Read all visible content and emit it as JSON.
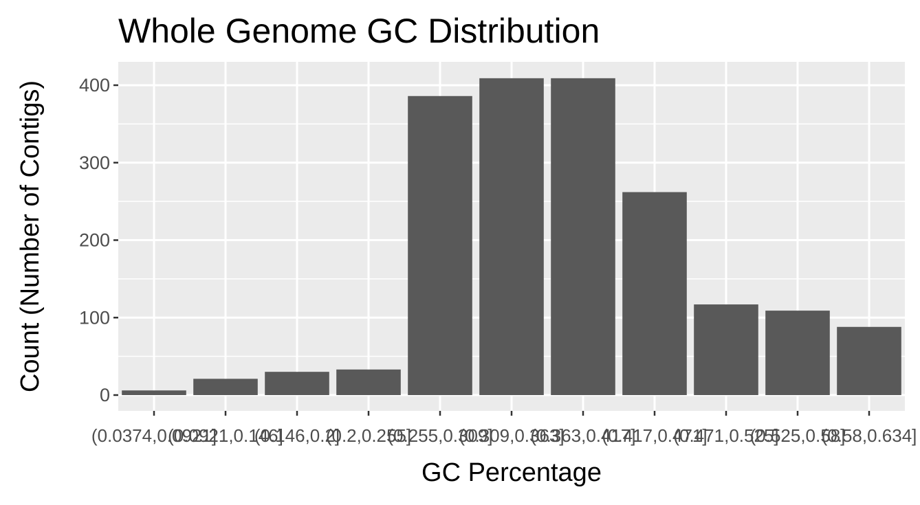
{
  "chart_data": {
    "type": "bar",
    "title": "Whole Genome GC Distribution",
    "xlabel": "GC Percentage",
    "ylabel": "Count (Number of Contigs)",
    "categories": [
      "(0.0374,0.0921]",
      "(0.0921,0.146]",
      "(0.146,0.2]",
      "(0.2,0.255]",
      "(0.255,0.309]",
      "(0.309,0.363]",
      "(0.363,0.417]",
      "(0.417,0.471]",
      "(0.471,0.525]",
      "(0.525,0.58]",
      "(0.58,0.634]"
    ],
    "values": [
      6,
      21,
      30,
      33,
      386,
      409,
      409,
      262,
      117,
      109,
      88
    ],
    "ylim": [
      0,
      430
    ],
    "yticks": [
      0,
      100,
      200,
      300,
      400
    ],
    "grid": true,
    "legend": "none",
    "colors": {
      "bar": "#595959",
      "panel": "#ebebeb",
      "grid": "#ffffff",
      "tick": "#333333"
    }
  }
}
